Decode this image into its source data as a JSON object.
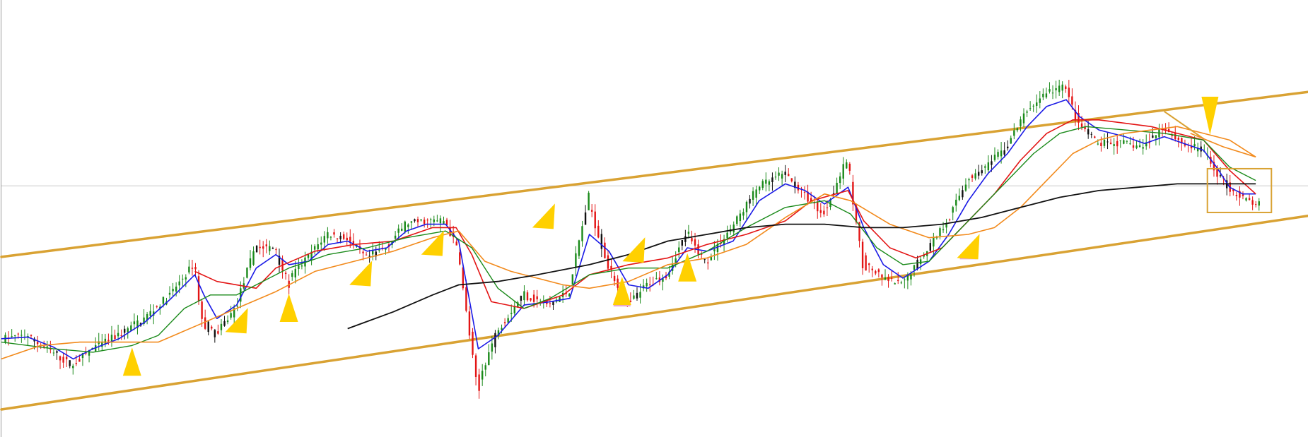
{
  "colors": {
    "background": "#ffffff",
    "axis": "#9a9a9a",
    "reference_line": "#c8c8c8",
    "channel": "#d9a233",
    "bull_candle": "#1a8a1a",
    "bear_candle": "#e31414",
    "doji_candle": "#111111",
    "marker": "#ffd000",
    "marker_highlight": "#e8a6d8"
  },
  "chart_data": {
    "type": "line",
    "title": "",
    "xlabel": "",
    "ylabel": "",
    "x_range": [
      0,
      100
    ],
    "y_range": [
      0,
      100
    ],
    "grid": false,
    "horizontal_reference": 66.4,
    "channel": {
      "upper": [
        [
          0,
          45.3
        ],
        [
          100,
          94.3
        ]
      ],
      "lower": [
        [
          0,
          0.0
        ],
        [
          100,
          57.5
        ]
      ]
    },
    "price_path": [
      [
        0,
        21
      ],
      [
        2,
        22
      ],
      [
        4,
        17
      ],
      [
        5.5,
        13
      ],
      [
        7,
        18
      ],
      [
        9,
        22
      ],
      [
        11,
        27
      ],
      [
        13,
        34
      ],
      [
        14.8,
        43
      ],
      [
        15.5,
        26
      ],
      [
        16.5,
        22
      ],
      [
        18,
        30
      ],
      [
        19.5,
        48
      ],
      [
        21,
        48
      ],
      [
        22,
        38
      ],
      [
        23.5,
        45
      ],
      [
        25,
        52
      ],
      [
        26.5,
        51
      ],
      [
        28,
        45
      ],
      [
        29.5,
        48
      ],
      [
        31,
        55
      ],
      [
        32.5,
        56
      ],
      [
        34,
        56
      ],
      [
        35,
        48
      ],
      [
        36.5,
        7
      ],
      [
        38,
        23
      ],
      [
        40,
        34
      ],
      [
        42,
        31
      ],
      [
        43.5,
        35
      ],
      [
        45,
        62
      ],
      [
        46.5,
        43
      ],
      [
        48,
        31
      ],
      [
        49.5,
        37
      ],
      [
        51,
        40
      ],
      [
        52.5,
        52
      ],
      [
        54,
        44
      ],
      [
        56,
        54
      ],
      [
        58,
        66
      ],
      [
        60,
        70
      ],
      [
        61.5,
        64
      ],
      [
        63,
        58
      ],
      [
        64.8,
        74
      ],
      [
        66,
        44
      ],
      [
        67.5,
        39
      ],
      [
        69,
        37
      ],
      [
        71,
        48
      ],
      [
        72.5,
        56
      ],
      [
        74,
        68
      ],
      [
        75.5,
        72
      ],
      [
        77,
        78
      ],
      [
        78.5,
        88
      ],
      [
        80,
        94
      ],
      [
        81.5,
        96
      ],
      [
        82.5,
        85
      ],
      [
        84,
        79
      ],
      [
        86,
        79
      ],
      [
        87.5,
        78
      ],
      [
        89,
        84
      ],
      [
        90.5,
        79
      ],
      [
        92,
        77
      ],
      [
        93,
        71
      ],
      [
        94,
        66
      ],
      [
        95,
        63
      ],
      [
        96,
        61
      ]
    ],
    "series": [
      {
        "name": "",
        "color": "#1a1ae6",
        "width": 1.6,
        "values": [
          [
            0,
            21
          ],
          [
            2,
            21.5
          ],
          [
            4,
            18.5
          ],
          [
            5.5,
            15
          ],
          [
            7,
            18
          ],
          [
            9,
            21
          ],
          [
            11,
            26
          ],
          [
            13,
            33
          ],
          [
            14.8,
            40
          ],
          [
            15.5,
            34
          ],
          [
            16.5,
            27
          ],
          [
            18,
            31
          ],
          [
            19.5,
            42
          ],
          [
            21,
            46
          ],
          [
            22,
            43
          ],
          [
            23.5,
            44
          ],
          [
            25,
            49
          ],
          [
            26.5,
            50
          ],
          [
            28,
            47
          ],
          [
            29.5,
            48
          ],
          [
            31,
            53
          ],
          [
            32.5,
            55
          ],
          [
            34,
            55
          ],
          [
            35,
            50
          ],
          [
            36.5,
            18
          ],
          [
            38,
            22
          ],
          [
            40,
            31
          ],
          [
            42,
            32
          ],
          [
            43.5,
            33
          ],
          [
            45,
            52
          ],
          [
            46.5,
            47
          ],
          [
            48,
            37
          ],
          [
            49.5,
            36
          ],
          [
            51,
            40
          ],
          [
            52.5,
            48
          ],
          [
            54,
            47
          ],
          [
            56,
            50
          ],
          [
            58,
            62
          ],
          [
            60,
            67
          ],
          [
            61.5,
            65
          ],
          [
            63,
            61
          ],
          [
            64.8,
            66
          ],
          [
            66,
            54
          ],
          [
            67.5,
            43
          ],
          [
            69,
            39
          ],
          [
            71,
            44
          ],
          [
            72.5,
            52
          ],
          [
            74,
            62
          ],
          [
            75.5,
            70
          ],
          [
            77,
            76
          ],
          [
            78.5,
            84
          ],
          [
            80,
            90
          ],
          [
            81.5,
            92
          ],
          [
            82.5,
            87
          ],
          [
            84,
            83
          ],
          [
            86,
            81
          ],
          [
            87.5,
            79
          ],
          [
            89,
            81
          ],
          [
            90.5,
            79
          ],
          [
            92,
            77
          ],
          [
            93,
            72
          ],
          [
            94,
            66
          ],
          [
            95,
            64
          ],
          [
            96,
            64
          ]
        ]
      },
      {
        "name": "",
        "color": "#e31414",
        "width": 1.6,
        "values": [
          [
            14.8,
            41
          ],
          [
            16.5,
            38
          ],
          [
            19.5,
            36
          ],
          [
            21,
            42
          ],
          [
            24,
            47
          ],
          [
            27,
            49
          ],
          [
            30,
            50
          ],
          [
            33,
            54
          ],
          [
            34.8,
            54
          ],
          [
            36,
            46
          ],
          [
            37.5,
            32
          ],
          [
            40,
            30
          ],
          [
            43,
            34
          ],
          [
            45,
            40
          ],
          [
            48,
            43
          ],
          [
            51,
            45
          ],
          [
            54,
            49
          ],
          [
            57,
            52
          ],
          [
            60,
            56
          ],
          [
            62,
            62
          ],
          [
            64.8,
            65
          ],
          [
            66,
            56
          ],
          [
            68,
            48
          ],
          [
            70,
            45
          ],
          [
            72,
            48
          ],
          [
            74,
            56
          ],
          [
            76,
            64
          ],
          [
            78,
            74
          ],
          [
            80,
            82
          ],
          [
            82,
            86
          ],
          [
            84,
            86
          ],
          [
            86,
            85
          ],
          [
            88,
            84
          ],
          [
            90,
            82
          ],
          [
            92,
            80
          ],
          [
            94,
            71
          ],
          [
            96,
            64
          ]
        ]
      },
      {
        "name": "",
        "color": "#1a8a1a",
        "width": 1.4,
        "values": [
          [
            0,
            20
          ],
          [
            4,
            18
          ],
          [
            7,
            17
          ],
          [
            10,
            19
          ],
          [
            12,
            22
          ],
          [
            14,
            30
          ],
          [
            16,
            34
          ],
          [
            18,
            34
          ],
          [
            20,
            38
          ],
          [
            22,
            42
          ],
          [
            25,
            46
          ],
          [
            28,
            48
          ],
          [
            31,
            51
          ],
          [
            34,
            53
          ],
          [
            36,
            48
          ],
          [
            38,
            36
          ],
          [
            40,
            30
          ],
          [
            42,
            33
          ],
          [
            45,
            40
          ],
          [
            48,
            42
          ],
          [
            51,
            42
          ],
          [
            54,
            47
          ],
          [
            57,
            54
          ],
          [
            60,
            60
          ],
          [
            63,
            62
          ],
          [
            65,
            58
          ],
          [
            67,
            48
          ],
          [
            69,
            43
          ],
          [
            71,
            44
          ],
          [
            73,
            52
          ],
          [
            75,
            60
          ],
          [
            77,
            68
          ],
          [
            79,
            76
          ],
          [
            81,
            82
          ],
          [
            83,
            84
          ],
          [
            86,
            83
          ],
          [
            89,
            82
          ],
          [
            92,
            80
          ],
          [
            94,
            72
          ],
          [
            96,
            68
          ]
        ]
      },
      {
        "name": "",
        "color": "#f28a1c",
        "width": 1.6,
        "values": [
          [
            0,
            15
          ],
          [
            3,
            19
          ],
          [
            6,
            20
          ],
          [
            9,
            20
          ],
          [
            12,
            20
          ],
          [
            15,
            25
          ],
          [
            18,
            30
          ],
          [
            21,
            35
          ],
          [
            24,
            41
          ],
          [
            27,
            44
          ],
          [
            30,
            47
          ],
          [
            33,
            51
          ],
          [
            35,
            53
          ],
          [
            37,
            44
          ],
          [
            39,
            41
          ],
          [
            41,
            39
          ],
          [
            43,
            37
          ],
          [
            45,
            36
          ],
          [
            48,
            38
          ],
          [
            51,
            43
          ],
          [
            54,
            45
          ],
          [
            57,
            49
          ],
          [
            60,
            57
          ],
          [
            63,
            64
          ],
          [
            65,
            62
          ],
          [
            68,
            55
          ],
          [
            71,
            51
          ],
          [
            74,
            52
          ],
          [
            76,
            54
          ],
          [
            78,
            60
          ],
          [
            80,
            68
          ],
          [
            82,
            76
          ],
          [
            84,
            80
          ],
          [
            86,
            82
          ],
          [
            88,
            83
          ],
          [
            90,
            84
          ],
          [
            92,
            82
          ],
          [
            94,
            80
          ],
          [
            96,
            75
          ]
        ]
      },
      {
        "name": "",
        "color": "#111111",
        "width": 1.8,
        "values": [
          [
            26.5,
            24
          ],
          [
            30,
            29
          ],
          [
            33,
            34
          ],
          [
            35,
            37
          ],
          [
            38,
            38
          ],
          [
            41,
            40
          ],
          [
            45,
            43
          ],
          [
            48,
            46
          ],
          [
            51,
            50
          ],
          [
            54,
            52
          ],
          [
            57,
            54
          ],
          [
            60,
            55
          ],
          [
            63,
            55
          ],
          [
            66,
            54
          ],
          [
            69,
            54
          ],
          [
            72,
            55
          ],
          [
            75,
            57
          ],
          [
            78,
            60
          ],
          [
            81,
            63
          ],
          [
            84,
            65
          ],
          [
            87,
            66
          ],
          [
            90,
            67
          ],
          [
            92,
            67
          ],
          [
            96,
            67
          ]
        ]
      }
    ],
    "annotation_lines": [
      {
        "color": "#d9a233",
        "width": 2,
        "points": [
          [
            89,
            88.5
          ],
          [
            92,
            80.4
          ]
        ]
      },
      {
        "color": "#f28a1c",
        "width": 1.6,
        "points": [
          [
            91,
            82
          ],
          [
            93.5,
            78
          ],
          [
            96,
            75
          ]
        ]
      }
    ],
    "markers": [
      {
        "x": 10.0,
        "y": 10,
        "dir": "up",
        "highlight": false
      },
      {
        "x": 18.0,
        "y": 23,
        "dir": "up-right",
        "highlight": false
      },
      {
        "x": 22.0,
        "y": 26,
        "dir": "up",
        "highlight": false
      },
      {
        "x": 27.5,
        "y": 37,
        "dir": "up-right",
        "highlight": false
      },
      {
        "x": 33.0,
        "y": 46,
        "dir": "up-right",
        "highlight": false
      },
      {
        "x": 41.5,
        "y": 54,
        "dir": "up-right",
        "highlight": false
      },
      {
        "x": 47.5,
        "y": 31,
        "dir": "up",
        "highlight": true
      },
      {
        "x": 48.4,
        "y": 44,
        "dir": "up-right",
        "highlight": false
      },
      {
        "x": 52.5,
        "y": 38,
        "dir": "up",
        "highlight": false
      },
      {
        "x": 74.0,
        "y": 45,
        "dir": "up-right",
        "highlight": true
      },
      {
        "x": 92.5,
        "y": 87,
        "dir": "down",
        "highlight": false
      }
    ],
    "focus_box": {
      "x": [
        92.3,
        97.2
      ],
      "y": [
        58.5,
        71.5
      ]
    }
  }
}
